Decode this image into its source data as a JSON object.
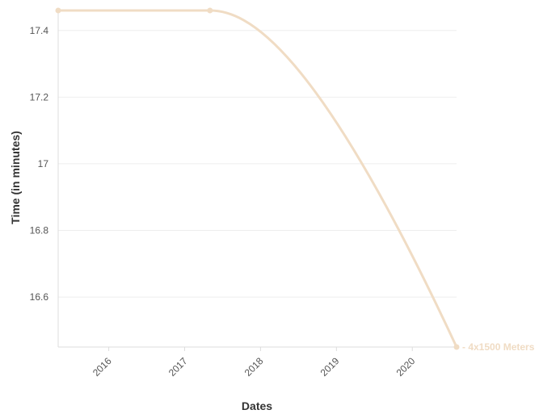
{
  "chart_data": {
    "type": "line",
    "xlabel": "Dates",
    "ylabel": "Time (in minutes)",
    "x_ticks": [
      "2016",
      "2017",
      "2018",
      "2019",
      "2020"
    ],
    "y_ticks": [
      "17.4",
      "17.2",
      "17",
      "16.8",
      "16.6"
    ],
    "ylim": [
      16.45,
      17.46
    ],
    "xlim": [
      "2015-05",
      "2020-08"
    ],
    "grid": true,
    "series": [
      {
        "name": "4x1500 Meters",
        "color": "#f0dcc4",
        "x": [
          "2015-05",
          "2017-05",
          "2020-08"
        ],
        "values": [
          17.46,
          17.46,
          16.45
        ]
      }
    ]
  }
}
